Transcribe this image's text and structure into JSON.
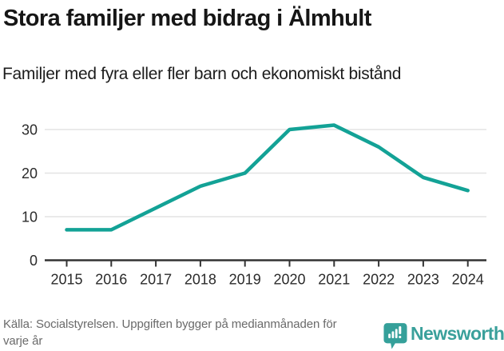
{
  "header": {
    "title": "Stora familjer med bidrag i Älmhult",
    "subtitle": "Familjer med fyra eller fler barn och ekonomiskt bistånd"
  },
  "chart_data": {
    "type": "line",
    "title": "Stora familjer med bidrag i Älmhult",
    "subtitle": "Familjer med fyra eller fler barn och ekonomiskt bistånd",
    "categories": [
      "2015",
      "2016",
      "2017",
      "2018",
      "2019",
      "2020",
      "2021",
      "2022",
      "2023",
      "2024"
    ],
    "series": [
      {
        "name": "Familjer med fyra eller fler barn och ekonomiskt bistånd",
        "values": [
          7,
          7,
          12,
          17,
          20,
          30,
          31,
          26,
          19,
          16
        ]
      }
    ],
    "xlabel": "",
    "ylabel": "",
    "ylim": [
      0,
      33
    ],
    "yticks": [
      0,
      10,
      20,
      30
    ],
    "grid": true,
    "legend_position": "none",
    "line_color": "#13a296"
  },
  "axis_style": {
    "grid_color": "#e3e3e3",
    "axis_color": "#333333",
    "tick_label_color": "#2b2b2b"
  },
  "footer": {
    "source": "Källa: Socialstyrelsen. Uppgiften bygger på medianmånaden för varje år",
    "brand": "Newsworthy"
  },
  "icons": {
    "brand_icon": "bar-chart-speech-bubble-icon",
    "brand_icon_color": "#35a09a"
  }
}
